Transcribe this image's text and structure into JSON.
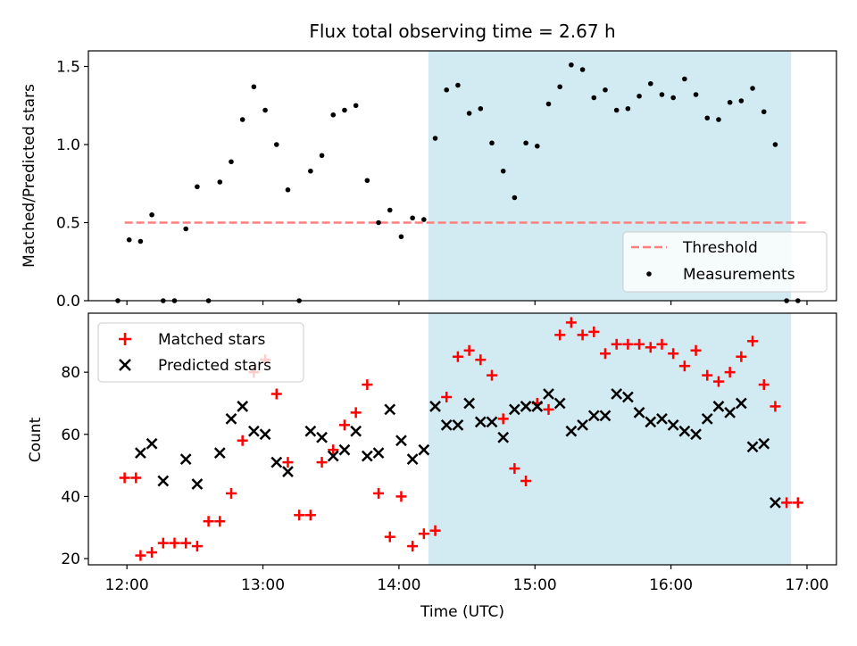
{
  "title": "Flux total observing time = 2.67 h",
  "colors": {
    "band": "#add8e6",
    "threshold": "#ff7f7f",
    "matched": "#ff0000",
    "predicted": "#000000",
    "measurement": "#000000"
  },
  "chart_data": [
    {
      "type": "scatter",
      "panel": "top",
      "xlabel": "",
      "ylabel": "Matched/Predicted stars",
      "xlim": [
        "11:43",
        "17:13"
      ],
      "ylim": [
        0,
        1.6
      ],
      "yticks": [
        0.0,
        0.5,
        1.0,
        1.5
      ],
      "ytick_labels": [
        "0.0",
        "0.5",
        "1.0",
        "1.5"
      ],
      "xticks": [
        "12:00",
        "13:00",
        "14:00",
        "15:00",
        "16:00",
        "17:00"
      ],
      "shaded_interval": [
        "14:13",
        "16:53"
      ],
      "threshold": {
        "name": "Threshold",
        "value": 0.5,
        "x_range": [
          "11:59",
          "17:00"
        ]
      },
      "legend": {
        "position": "lower right",
        "entries": [
          "Threshold",
          "Measurements"
        ]
      },
      "series": [
        {
          "name": "Measurements",
          "marker": "dot",
          "x": [
            "11:56",
            "12:01",
            "12:06",
            "12:11",
            "12:16",
            "12:21",
            "12:26",
            "12:31",
            "12:36",
            "12:41",
            "12:46",
            "12:51",
            "12:56",
            "13:01",
            "13:06",
            "13:11",
            "13:16",
            "13:21",
            "13:26",
            "13:31",
            "13:36",
            "13:41",
            "13:46",
            "13:51",
            "13:56",
            "14:01",
            "14:06",
            "14:11",
            "14:16",
            "14:21",
            "14:26",
            "14:31",
            "14:36",
            "14:41",
            "14:46",
            "14:51",
            "14:56",
            "15:01",
            "15:06",
            "15:11",
            "15:16",
            "15:21",
            "15:26",
            "15:31",
            "15:36",
            "15:41",
            "15:46",
            "15:51",
            "15:56",
            "16:01",
            "16:06",
            "16:11",
            "16:16",
            "16:21",
            "16:26",
            "16:31",
            "16:36",
            "16:41",
            "16:46",
            "16:51",
            "16:56"
          ],
          "y": [
            0.0,
            0.39,
            0.38,
            0.55,
            0.0,
            0.0,
            0.46,
            0.73,
            0.0,
            0.76,
            0.89,
            1.16,
            1.37,
            1.22,
            1.0,
            0.71,
            0.0,
            0.83,
            0.93,
            1.19,
            1.22,
            1.25,
            0.77,
            0.5,
            0.58,
            0.41,
            0.53,
            0.52,
            1.04,
            1.35,
            1.38,
            1.2,
            1.23,
            1.01,
            0.83,
            0.66,
            1.01,
            0.99,
            1.26,
            1.37,
            1.51,
            1.48,
            1.3,
            1.35,
            1.22,
            1.23,
            1.31,
            1.39,
            1.32,
            1.3,
            1.42,
            1.32,
            1.17,
            1.16,
            1.27,
            1.28,
            1.36,
            1.21,
            1.0,
            0.0,
            0.0
          ]
        }
      ]
    },
    {
      "type": "scatter",
      "panel": "bottom",
      "xlabel": "Time (UTC)",
      "ylabel": "Count",
      "xlim": [
        "11:43",
        "17:13"
      ],
      "ylim": [
        18,
        99
      ],
      "yticks": [
        20,
        40,
        60,
        80
      ],
      "xticks": [
        "12:00",
        "13:00",
        "14:00",
        "15:00",
        "16:00",
        "17:00"
      ],
      "shaded_interval": [
        "14:13",
        "16:53"
      ],
      "legend": {
        "position": "upper left",
        "entries": [
          "Matched stars",
          "Predicted stars"
        ]
      },
      "x": [
        "11:56",
        "12:01",
        "12:06",
        "12:11",
        "12:16",
        "12:21",
        "12:26",
        "12:31",
        "12:36",
        "12:41",
        "12:46",
        "12:51",
        "12:56",
        "13:01",
        "13:06",
        "13:11",
        "13:16",
        "13:21",
        "13:26",
        "13:31",
        "13:36",
        "13:41",
        "13:46",
        "13:51",
        "13:56",
        "14:01",
        "14:06",
        "14:11",
        "14:16",
        "14:21",
        "14:26",
        "14:31",
        "14:36",
        "14:41",
        "14:46",
        "14:51",
        "14:56",
        "15:01",
        "15:06",
        "15:11",
        "15:16",
        "15:21",
        "15:26",
        "15:31",
        "15:36",
        "15:41",
        "15:46",
        "15:51",
        "15:56",
        "16:01",
        "16:06",
        "16:11",
        "16:16",
        "16:21",
        "16:26",
        "16:31",
        "16:36",
        "16:41",
        "16:46",
        "16:51",
        "16:56"
      ],
      "series": [
        {
          "name": "Matched stars",
          "marker": "plus",
          "values": [
            46,
            46,
            21,
            22,
            25,
            25,
            25,
            24,
            32,
            32,
            41,
            58,
            80,
            84,
            73,
            51,
            34,
            34,
            51,
            55,
            63,
            67,
            76,
            41,
            27,
            40,
            24,
            28,
            29,
            72,
            85,
            87,
            84,
            79,
            65,
            49,
            45,
            70,
            68,
            92,
            96,
            92,
            93,
            86,
            89,
            89,
            89,
            88,
            89,
            86,
            82,
            87,
            79,
            77,
            80,
            85,
            90,
            76,
            69,
            38,
            38
          ],
          "x_override": {
            "0": "11:59",
            "1": "12:04"
          }
        },
        {
          "name": "Predicted stars",
          "marker": "x",
          "values": [
            null,
            null,
            54,
            57,
            45,
            null,
            52,
            44,
            null,
            54,
            65,
            69,
            61,
            60,
            51,
            48,
            null,
            61,
            59,
            53,
            55,
            61,
            53,
            54,
            68,
            58,
            52,
            55,
            69,
            63,
            63,
            70,
            64,
            64,
            59,
            68,
            69,
            69,
            73,
            70,
            61,
            63,
            66,
            66,
            73,
            72,
            67,
            64,
            65,
            63,
            61,
            60,
            65,
            69,
            67,
            70,
            56,
            57,
            38,
            null,
            null
          ]
        }
      ]
    }
  ]
}
